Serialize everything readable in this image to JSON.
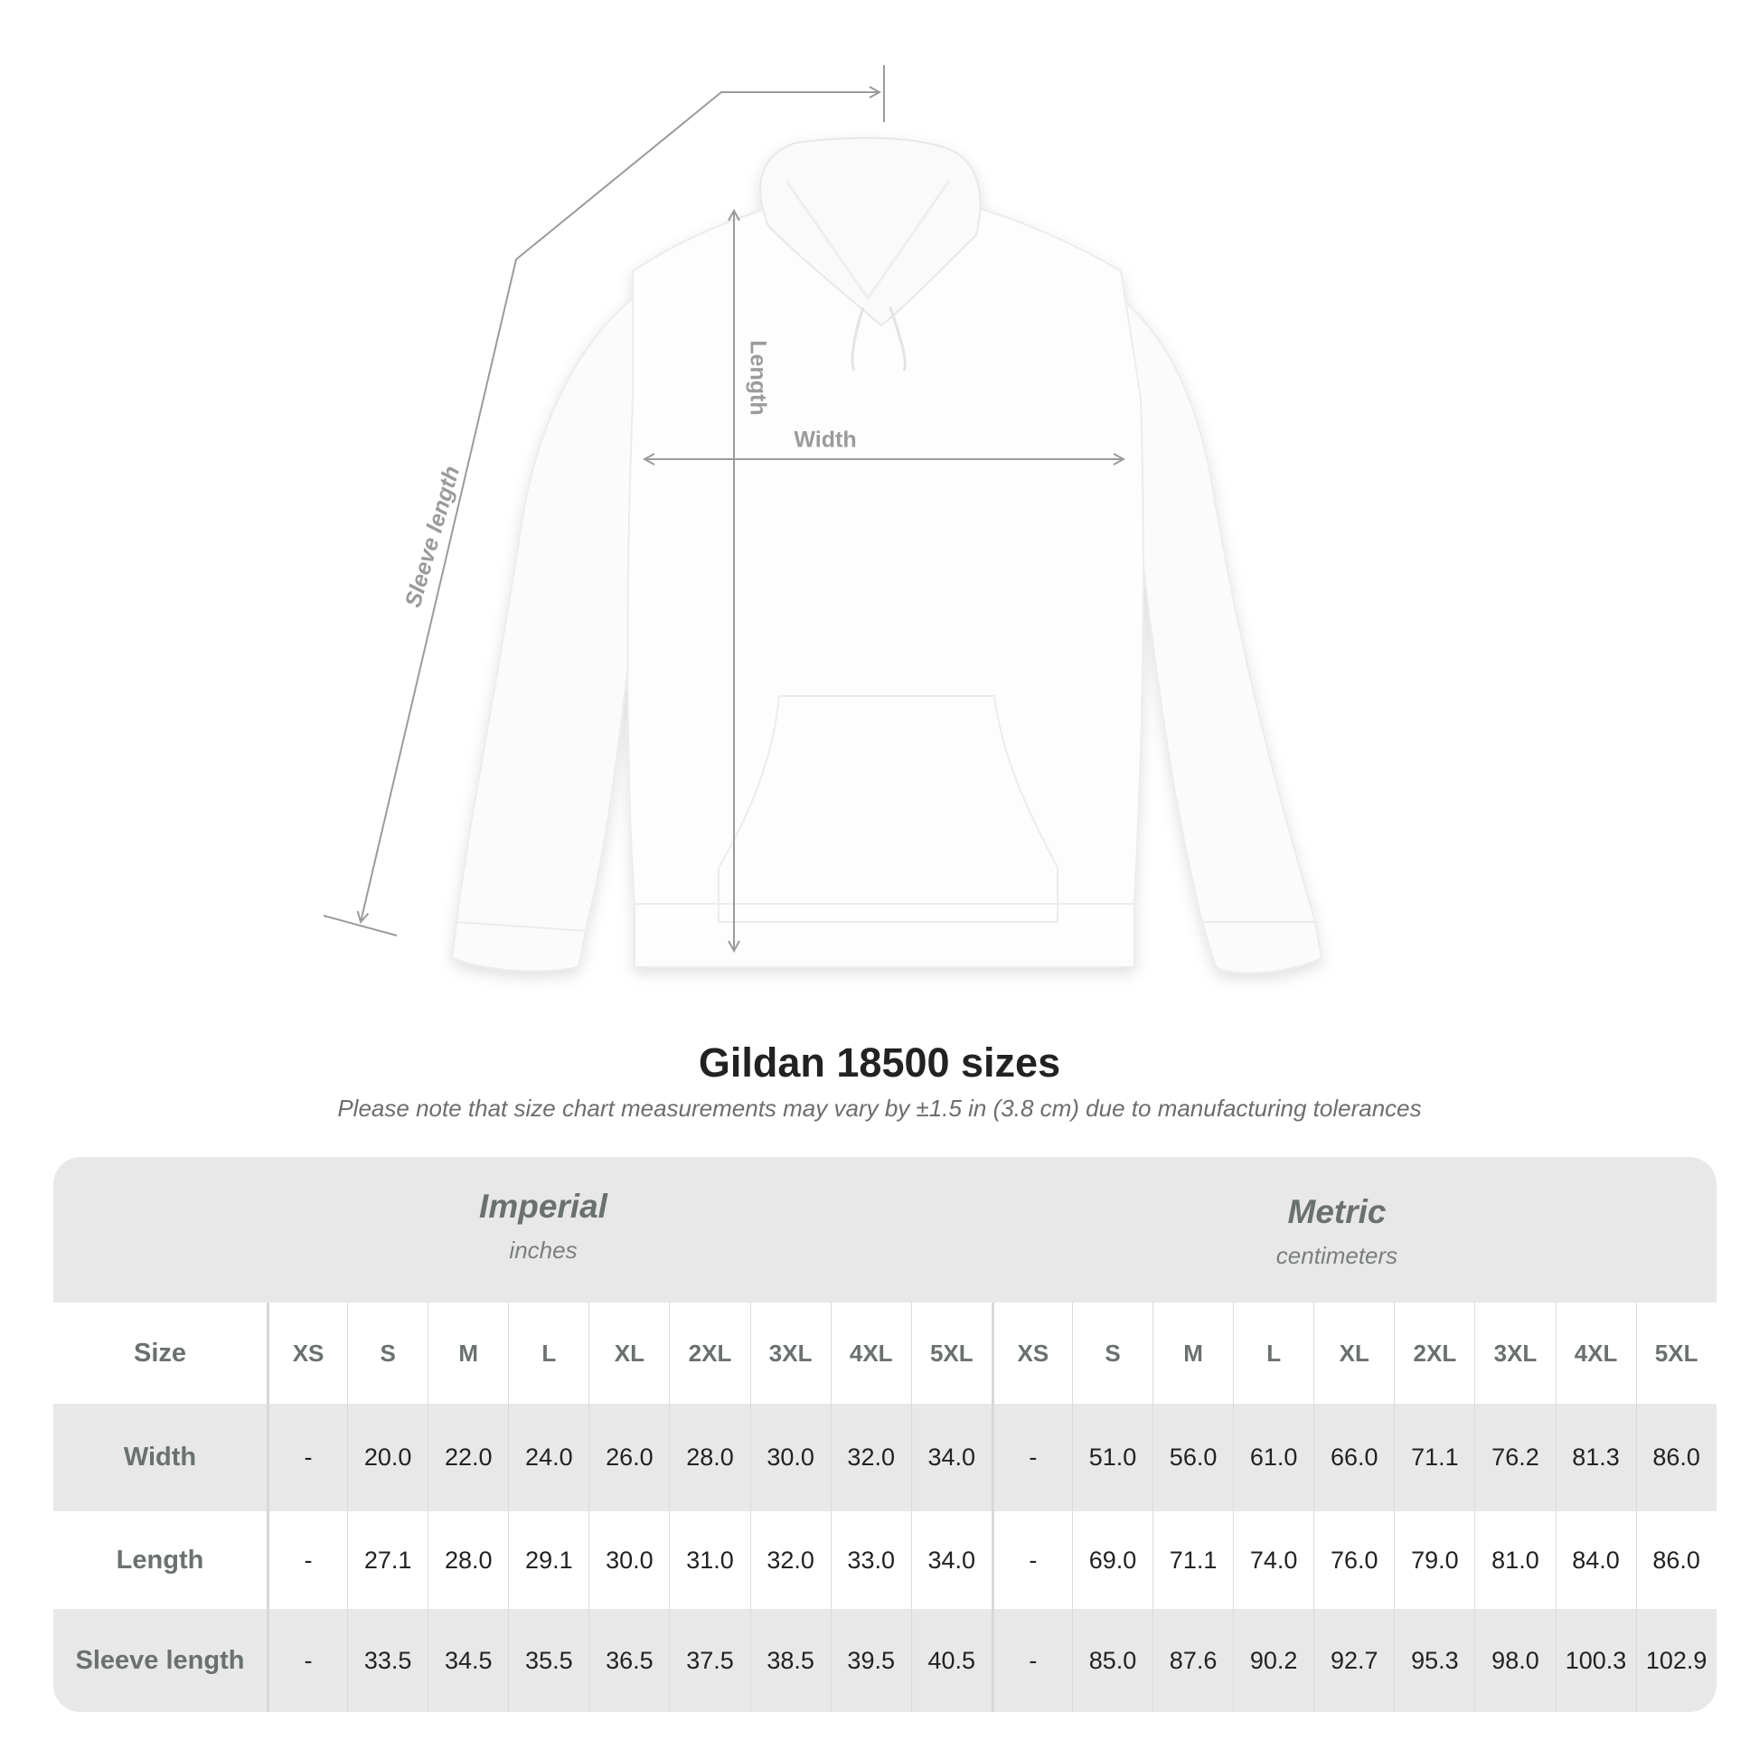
{
  "diagram": {
    "labels": {
      "sleeve": "Sleeve length",
      "length": "Length",
      "width": "Width"
    },
    "line_color": "#9b9b9b"
  },
  "title": "Gildan 18500 sizes",
  "subtitle": "Please note that size chart measurements may vary by ±1.5 in (3.8 cm) due to manufacturing tolerances",
  "table": {
    "imperial": {
      "name": "Imperial",
      "unit": "inches"
    },
    "metric": {
      "name": "Metric",
      "unit": "centimeters"
    },
    "size_label": "Size",
    "sizes": [
      "XS",
      "S",
      "M",
      "L",
      "XL",
      "2XL",
      "3XL",
      "4XL",
      "5XL"
    ],
    "rows": [
      {
        "label": "Width",
        "imperial": [
          "-",
          "20.0",
          "22.0",
          "24.0",
          "26.0",
          "28.0",
          "30.0",
          "32.0",
          "34.0"
        ],
        "metric": [
          "-",
          "51.0",
          "56.0",
          "61.0",
          "66.0",
          "71.1",
          "76.2",
          "81.3",
          "86.0"
        ]
      },
      {
        "label": "Length",
        "imperial": [
          "-",
          "27.1",
          "28.0",
          "29.1",
          "30.0",
          "31.0",
          "32.0",
          "33.0",
          "34.0"
        ],
        "metric": [
          "-",
          "69.0",
          "71.1",
          "74.0",
          "76.0",
          "79.0",
          "81.0",
          "84.0",
          "86.0"
        ]
      },
      {
        "label": "Sleeve length",
        "imperial": [
          "-",
          "33.5",
          "34.5",
          "35.5",
          "36.5",
          "37.5",
          "38.5",
          "39.5",
          "40.5"
        ],
        "metric": [
          "-",
          "85.0",
          "87.6",
          "90.2",
          "92.7",
          "95.3",
          "98.0",
          "100.3",
          "102.9"
        ]
      }
    ],
    "band_color": "#e8e8e8"
  }
}
